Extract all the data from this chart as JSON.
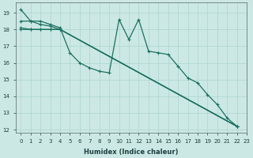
{
  "xlabel": "Humidex (Indice chaleur)",
  "bg_color": "#cce8e4",
  "grid_color": "#aad4d0",
  "line_color": "#1a7060",
  "xlim": [
    -0.5,
    23
  ],
  "ylim": [
    11.8,
    19.6
  ],
  "yticks": [
    12,
    13,
    14,
    15,
    16,
    17,
    18,
    19
  ],
  "xticks": [
    0,
    1,
    2,
    3,
    4,
    5,
    6,
    7,
    8,
    9,
    10,
    11,
    12,
    13,
    14,
    15,
    16,
    17,
    18,
    19,
    20,
    21,
    22,
    23
  ],
  "line1_x": [
    0,
    1,
    2,
    3,
    4,
    5,
    6,
    7,
    8,
    9,
    10,
    11,
    12,
    13,
    14,
    15,
    16,
    17,
    18,
    19,
    20,
    21,
    22
  ],
  "line1_y": [
    19.2,
    18.5,
    18.5,
    18.3,
    18.1,
    16.6,
    16.0,
    15.7,
    15.5,
    15.4,
    18.6,
    17.4,
    18.6,
    16.7,
    16.6,
    16.5,
    15.8,
    15.1,
    14.8,
    14.1,
    13.5,
    12.7,
    12.2
  ],
  "line2_x": [
    0,
    1,
    2,
    3,
    4,
    22
  ],
  "line2_y": [
    18.5,
    18.5,
    18.3,
    18.2,
    18.0,
    12.2
  ],
  "line3_x": [
    0,
    1,
    2,
    3,
    4,
    22
  ],
  "line3_y": [
    18.1,
    18.0,
    18.0,
    18.0,
    18.0,
    12.2
  ],
  "line4_x": [
    0,
    1,
    2,
    3,
    4,
    22
  ],
  "line4_y": [
    18.0,
    18.0,
    18.0,
    18.0,
    18.0,
    12.2
  ],
  "line_lw": 0.9,
  "marker_size": 3.0
}
